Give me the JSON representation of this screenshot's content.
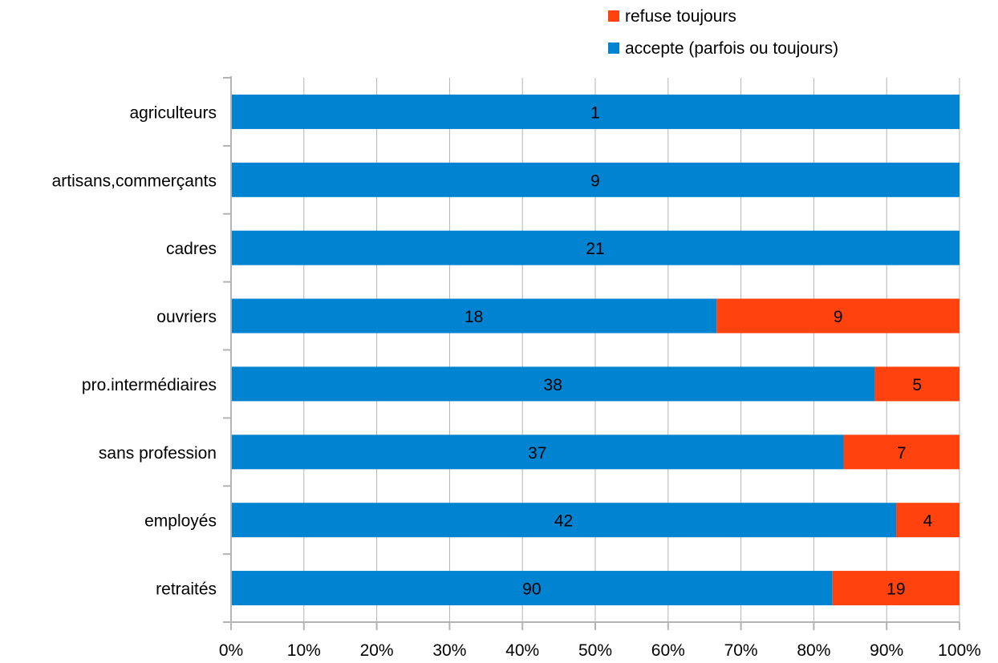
{
  "chart_data": {
    "type": "bar",
    "orientation": "horizontal",
    "stacked": true,
    "normalized": true,
    "categories": [
      "agriculteurs",
      "artisans,commerçants",
      "cadres",
      "ouvriers",
      "pro.intermédiaires",
      "sans profession",
      "employés",
      "retraités"
    ],
    "series": [
      {
        "name": "accepte (parfois ou toujours)",
        "color": "#0084d1",
        "values": [
          1,
          9,
          21,
          18,
          38,
          37,
          42,
          90
        ],
        "labels": [
          "1",
          "9",
          "21",
          "18",
          "38",
          "37",
          "42",
          "90"
        ]
      },
      {
        "name": "refuse toujours",
        "color": "#ff420e",
        "values": [
          0,
          0,
          0,
          9,
          5,
          7,
          4,
          19
        ],
        "labels": [
          "",
          "",
          "",
          "9",
          "5",
          "7",
          "4",
          "19"
        ]
      }
    ],
    "xlim": [
      0,
      100
    ],
    "xticks": [
      0,
      10,
      20,
      30,
      40,
      50,
      60,
      70,
      80,
      90,
      100
    ],
    "xtick_labels": [
      "0%",
      "10%",
      "20%",
      "30%",
      "40%",
      "50%",
      "60%",
      "70%",
      "80%",
      "90%",
      "100%"
    ],
    "grid": "vertical",
    "legend": {
      "position": "top-right",
      "order": [
        "refuse toujours",
        "accepte (parfois ou toujours)"
      ]
    }
  }
}
